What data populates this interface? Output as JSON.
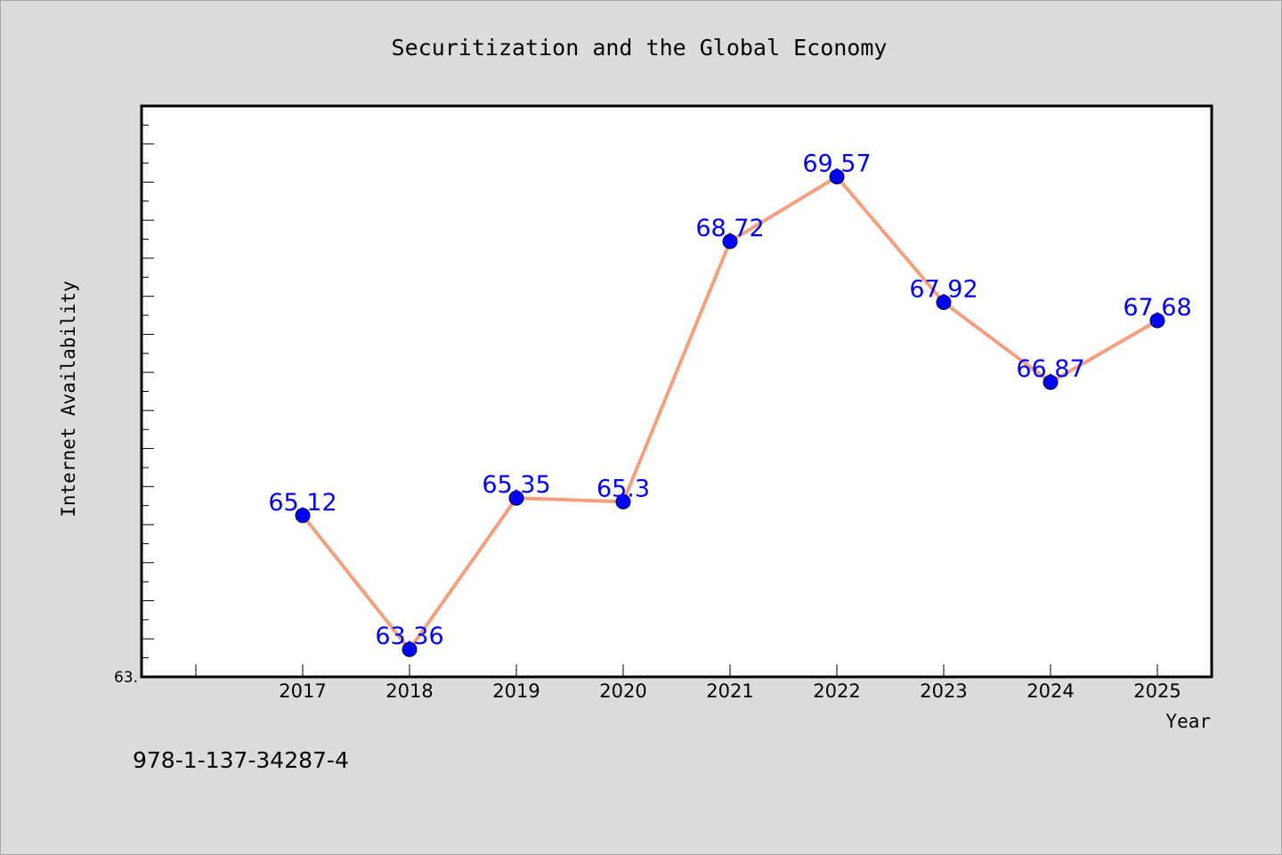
{
  "chart_data": {
    "type": "line",
    "title": "Securitization and the Global Economy",
    "xlabel": "Year",
    "ylabel": "Internet Availability",
    "categories": [
      "2017",
      "2018",
      "2019",
      "2020",
      "2021",
      "2022",
      "2023",
      "2024",
      "2025"
    ],
    "series": [
      {
        "values": [
          65.12,
          63.36,
          65.35,
          65.3,
          68.72,
          69.57,
          67.92,
          66.87,
          67.68
        ],
        "labels": [
          "65.12",
          "63.36",
          "65.35",
          "65.3",
          "68.72",
          "69.57",
          "67.92",
          "66.87",
          "67.68"
        ]
      }
    ],
    "ylim": [
      63.0,
      70.5
    ],
    "y_tick_label": "63.",
    "grid": false,
    "footer_text": "978-1-137-34287-4",
    "colors": {
      "background": "#dcdcdc",
      "plot_background": "#ffffff",
      "line": "#f4a07e",
      "marker": "#0000ff",
      "data_label": "#0000ff",
      "text": "#000000"
    }
  }
}
